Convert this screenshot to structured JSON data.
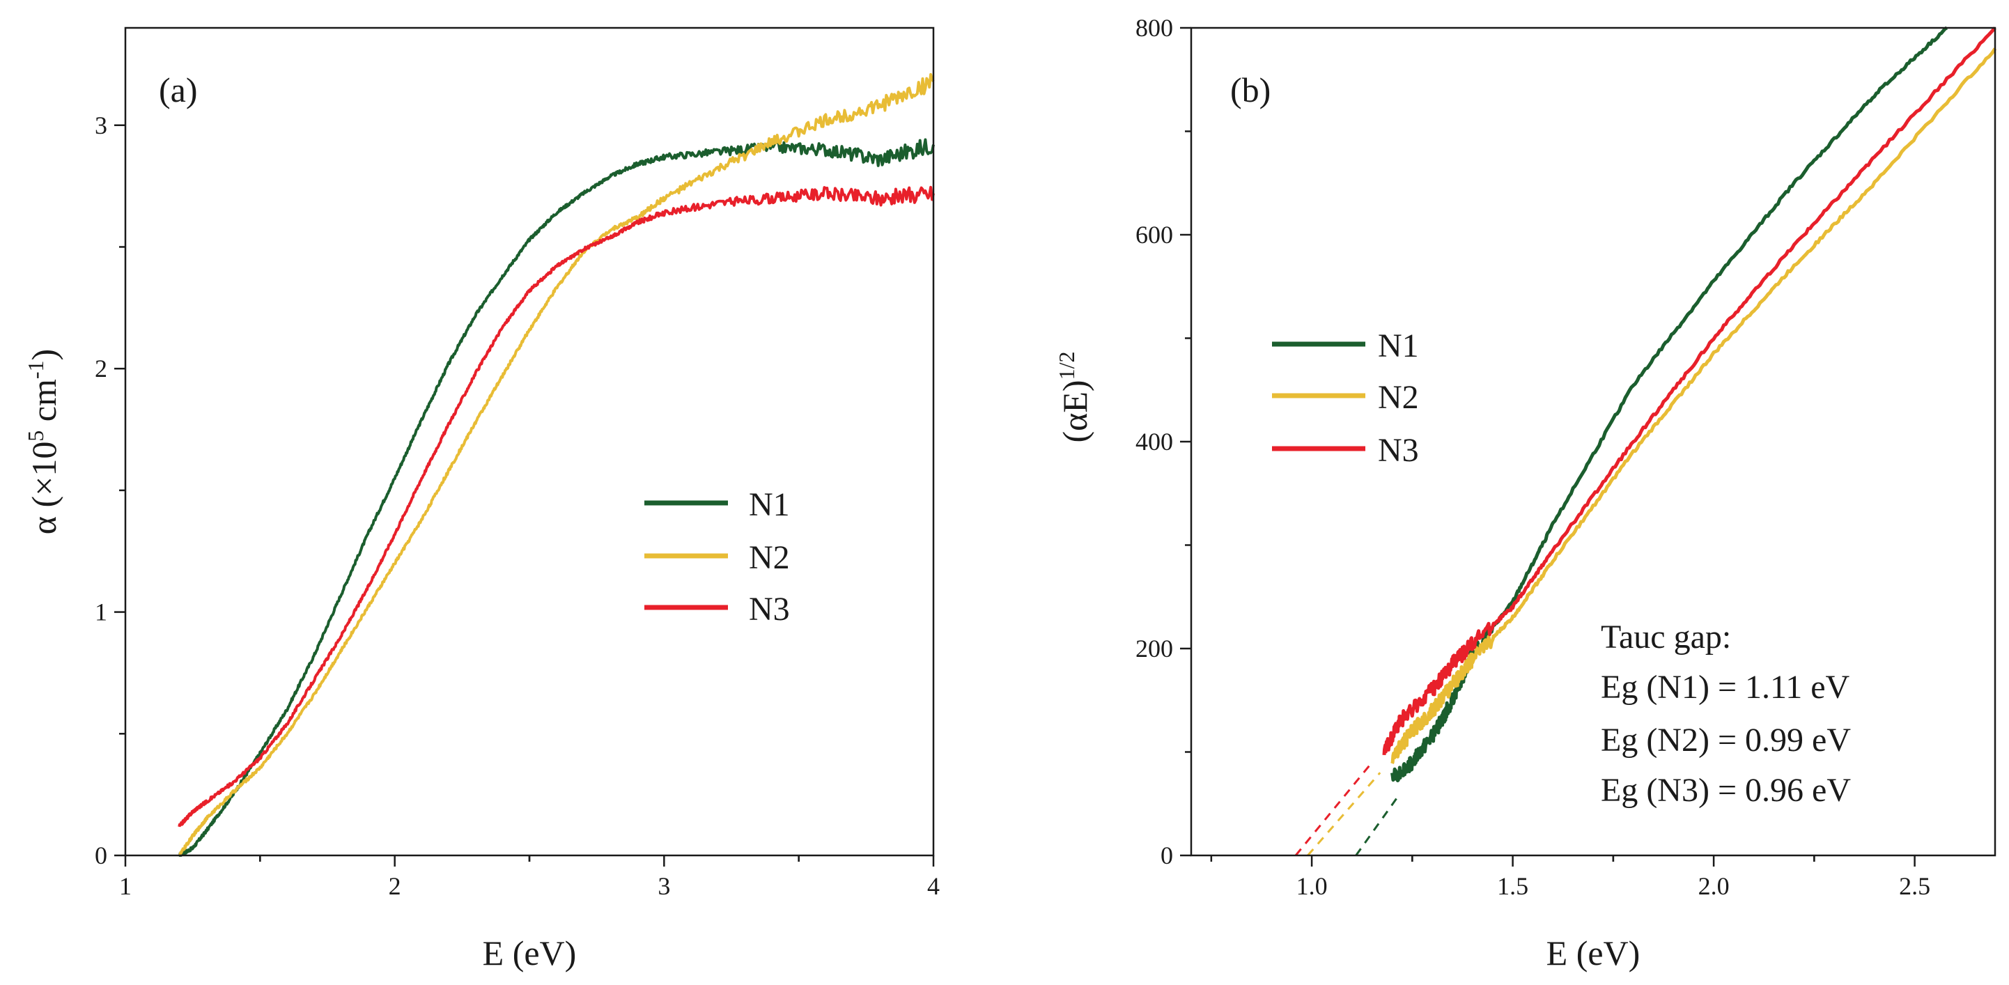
{
  "chart_data": [
    {
      "panel": "(a)",
      "type": "line",
      "xlabel": "E (eV)",
      "ylabel": {
        "base": "α (×10",
        "sup1": "5",
        "mid": " cm",
        "sup2": "-1",
        "end": ")"
      },
      "xlim": [
        1,
        4
      ],
      "ylim": [
        0,
        3.4
      ],
      "xticks": [
        1,
        2,
        3,
        4
      ],
      "xtick_labels": [
        "1",
        "2",
        "3",
        "4"
      ],
      "yticks": [
        0,
        1,
        2,
        3
      ],
      "ytick_labels": [
        "0",
        "1",
        "2",
        "3"
      ],
      "grid": false,
      "legend_position": "center-right",
      "series": [
        {
          "name": "N1",
          "color": "#1b5e2e",
          "x": [
            1.2,
            1.25,
            1.3,
            1.4,
            1.5,
            1.6,
            1.7,
            1.8,
            1.9,
            2.0,
            2.1,
            2.2,
            2.3,
            2.4,
            2.5,
            2.6,
            2.7,
            2.8,
            2.9,
            3.0,
            3.2,
            3.4,
            3.6,
            3.8,
            4.0
          ],
          "y": [
            0.0,
            0.03,
            0.1,
            0.25,
            0.42,
            0.6,
            0.82,
            1.07,
            1.32,
            1.55,
            1.79,
            2.02,
            2.22,
            2.38,
            2.53,
            2.64,
            2.72,
            2.79,
            2.84,
            2.87,
            2.89,
            2.91,
            2.9,
            2.86,
            2.92
          ]
        },
        {
          "name": "N2",
          "color": "#e8bc35",
          "x": [
            1.2,
            1.25,
            1.3,
            1.4,
            1.5,
            1.6,
            1.7,
            1.8,
            1.9,
            2.0,
            2.1,
            2.2,
            2.3,
            2.4,
            2.5,
            2.6,
            2.7,
            2.8,
            2.9,
            3.0,
            3.2,
            3.4,
            3.6,
            3.8,
            4.0
          ],
          "y": [
            0.0,
            0.08,
            0.15,
            0.26,
            0.36,
            0.5,
            0.66,
            0.84,
            1.02,
            1.2,
            1.38,
            1.58,
            1.78,
            1.97,
            2.16,
            2.33,
            2.48,
            2.57,
            2.62,
            2.7,
            2.82,
            2.93,
            3.02,
            3.08,
            3.18
          ]
        },
        {
          "name": "N3",
          "color": "#e8202a",
          "x": [
            1.2,
            1.25,
            1.3,
            1.4,
            1.5,
            1.6,
            1.7,
            1.8,
            1.9,
            2.0,
            2.1,
            2.2,
            2.3,
            2.4,
            2.5,
            2.6,
            2.7,
            2.8,
            2.9,
            3.0,
            3.2,
            3.4,
            3.6,
            3.8,
            4.0
          ],
          "y": [
            0.12,
            0.18,
            0.22,
            0.3,
            0.4,
            0.54,
            0.72,
            0.9,
            1.1,
            1.32,
            1.55,
            1.77,
            1.98,
            2.17,
            2.32,
            2.42,
            2.49,
            2.54,
            2.6,
            2.64,
            2.68,
            2.7,
            2.72,
            2.7,
            2.72
          ]
        }
      ]
    },
    {
      "panel": "(b)",
      "type": "line",
      "xlabel": "E (eV)",
      "ylabel": {
        "base": "(αE)",
        "sup1": "1/2"
      },
      "xlim": [
        0.7,
        2.7
      ],
      "ylim": [
        0,
        800
      ],
      "xticks": [
        1.0,
        1.5,
        2.0,
        2.5
      ],
      "xtick_labels": [
        "1.0",
        "1.5",
        "2.0",
        "2.5"
      ],
      "yticks": [
        0,
        200,
        400,
        600,
        800
      ],
      "ytick_labels": [
        "0",
        "200",
        "400",
        "600",
        "800"
      ],
      "grid": false,
      "legend_position": "top-left",
      "series": [
        {
          "name": "N1",
          "color": "#1b5e2e",
          "x": [
            1.2,
            1.25,
            1.3,
            1.35,
            1.4,
            1.5,
            1.6,
            1.8,
            2.0,
            2.2,
            2.4,
            2.58
          ],
          "y": [
            75,
            90,
            115,
            150,
            195,
            245,
            320,
            455,
            555,
            650,
            735,
            800
          ],
          "fit_x": [
            1.11,
            1.22
          ],
          "fit_y": [
            0,
            60
          ]
        },
        {
          "name": "N2",
          "color": "#e8bc35",
          "x": [
            1.2,
            1.25,
            1.3,
            1.35,
            1.4,
            1.5,
            1.6,
            1.8,
            2.0,
            2.2,
            2.4,
            2.7
          ],
          "y": [
            95,
            120,
            140,
            165,
            190,
            230,
            285,
            390,
            485,
            570,
            650,
            780
          ],
          "fit_x": [
            0.99,
            1.17
          ],
          "fit_y": [
            0,
            80
          ]
        },
        {
          "name": "N3",
          "color": "#e8202a",
          "x": [
            1.18,
            1.22,
            1.3,
            1.35,
            1.4,
            1.5,
            1.6,
            1.8,
            2.0,
            2.2,
            2.4,
            2.7
          ],
          "y": [
            100,
            130,
            160,
            185,
            205,
            240,
            295,
            400,
            500,
            590,
            675,
            800
          ],
          "fit_x": [
            0.96,
            1.15
          ],
          "fit_y": [
            0,
            90
          ]
        }
      ],
      "annotation": {
        "heading": "Tauc gap:",
        "lines": [
          "Eg (N1) = 1.11 eV",
          "Eg (N2) = 0.99 eV",
          "Eg (N3) = 0.96 eV"
        ]
      }
    }
  ]
}
